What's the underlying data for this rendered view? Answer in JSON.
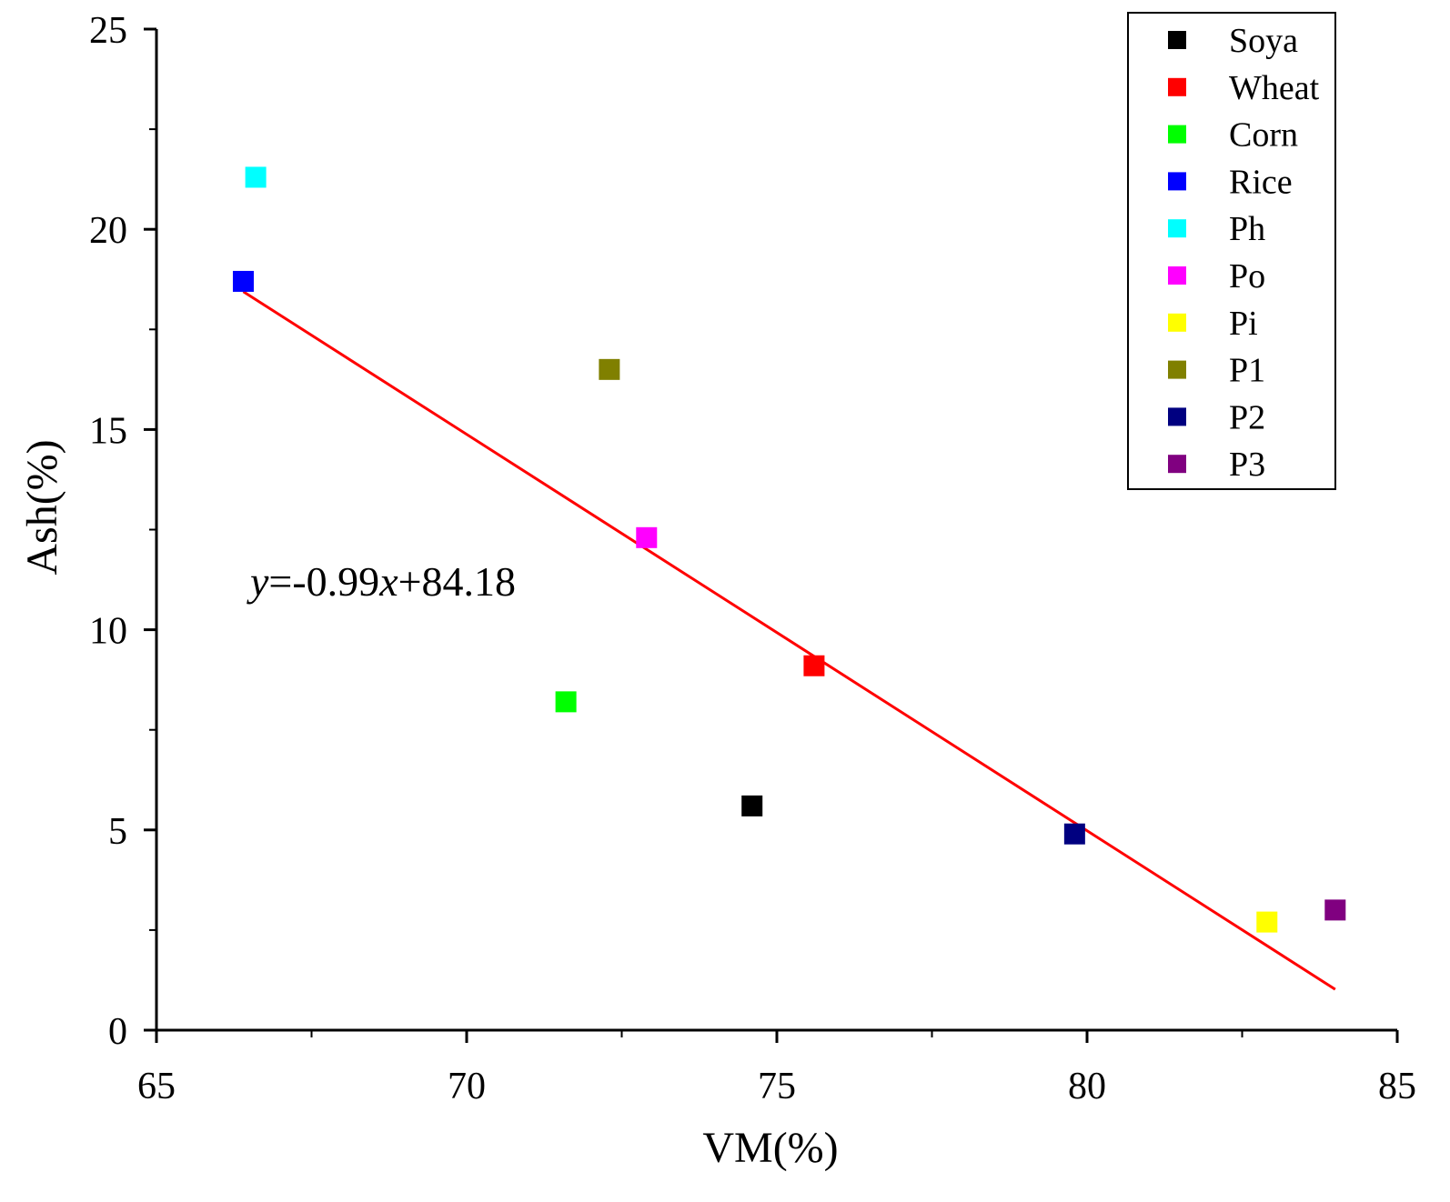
{
  "chart_data": {
    "type": "scatter",
    "xlabel": "VM(%)",
    "ylabel": "Ash(%)",
    "xlim": [
      65,
      85
    ],
    "ylim": [
      0,
      25
    ],
    "x_ticks": [
      65,
      70,
      75,
      80,
      85
    ],
    "y_ticks": [
      0,
      5,
      10,
      15,
      20,
      25
    ],
    "legend_position": "top-right",
    "series": [
      {
        "name": "Soya",
        "color": "#000000",
        "x": 74.6,
        "y": 5.6
      },
      {
        "name": "Wheat",
        "color": "#ff0000",
        "x": 75.6,
        "y": 9.1
      },
      {
        "name": "Corn",
        "color": "#00ff00",
        "x": 71.6,
        "y": 8.2
      },
      {
        "name": "Rice",
        "color": "#0000ff",
        "x": 66.4,
        "y": 18.7
      },
      {
        "name": "Ph",
        "color": "#00ffff",
        "x": 66.6,
        "y": 21.3
      },
      {
        "name": "Po",
        "color": "#ff00ff",
        "x": 72.9,
        "y": 12.3
      },
      {
        "name": "Pi",
        "color": "#ffff00",
        "x": 82.9,
        "y": 2.7
      },
      {
        "name": "P1",
        "color": "#808000",
        "x": 72.3,
        "y": 16.5
      },
      {
        "name": "P2",
        "color": "#000080",
        "x": 79.8,
        "y": 4.9
      },
      {
        "name": "P3",
        "color": "#800080",
        "x": 84.0,
        "y": 3.0
      }
    ],
    "fit_line": {
      "slope": -0.99,
      "intercept": 84.18,
      "x_range": [
        66.4,
        84.0
      ],
      "color": "#ff0000"
    },
    "equation": {
      "y": "y",
      "mid": "=-0.99",
      "x": "x",
      "tail": "+84.18"
    }
  }
}
